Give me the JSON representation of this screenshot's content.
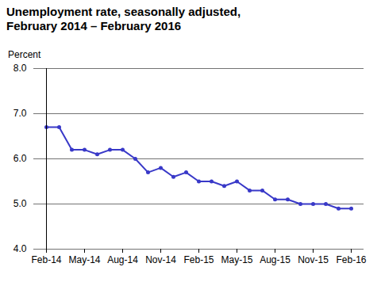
{
  "chart_data": {
    "type": "line",
    "title": "Unemployment rate, seasonally adjusted,",
    "subtitle": "February 2014 – February 2016",
    "y_label": "Percent",
    "categories": [
      "Feb-14",
      null,
      null,
      "May-14",
      null,
      null,
      "Aug-14",
      null,
      null,
      "Nov-14",
      null,
      null,
      "Feb-15",
      null,
      null,
      "May-15",
      null,
      null,
      "Aug-15",
      null,
      null,
      "Nov-15",
      null,
      null,
      "Feb-16"
    ],
    "values": [
      6.7,
      6.7,
      6.2,
      6.2,
      6.1,
      6.2,
      6.2,
      6.0,
      5.7,
      5.8,
      5.6,
      5.7,
      5.5,
      5.5,
      5.4,
      5.5,
      5.3,
      5.3,
      5.1,
      5.1,
      5.0,
      5.0,
      5.0,
      4.9,
      4.9
    ],
    "color": "#3939c8",
    "marker": "circle",
    "ylim": [
      4,
      8
    ],
    "yticks": [
      {
        "value": 4,
        "label": "4.0"
      },
      {
        "value": 5,
        "label": "5.0"
      },
      {
        "value": 6,
        "label": "6.0"
      },
      {
        "value": 7,
        "label": "7.0"
      },
      {
        "value": 8,
        "label": "8.0"
      }
    ],
    "grid": true
  }
}
